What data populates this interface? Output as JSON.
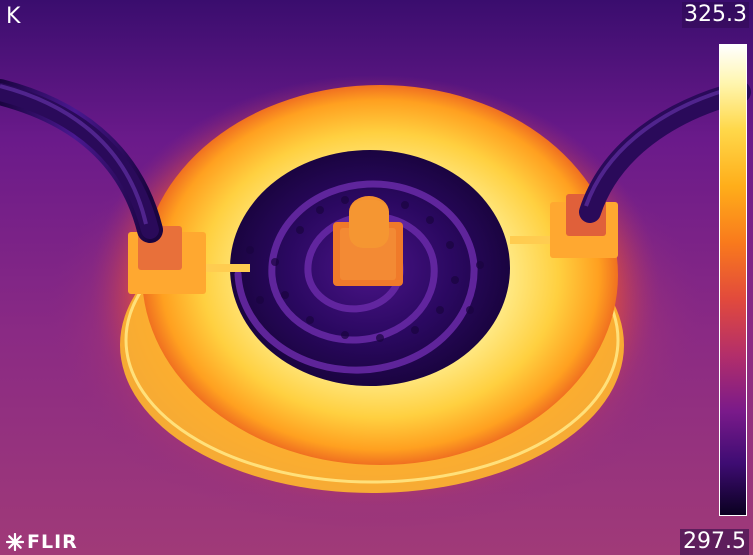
{
  "overlay": {
    "unit": "K",
    "scale_max": "325.3",
    "scale_min": "297.5",
    "brand": "FLIR"
  },
  "palette": {
    "hot": "#ffffff",
    "warm": "#ffd84a",
    "mid": "#f97a1c",
    "cool": "#b32e6a",
    "cold": "#3e0c73",
    "coldest": "#0a0020"
  },
  "icons": {
    "logo": "flir-starburst-icon"
  }
}
